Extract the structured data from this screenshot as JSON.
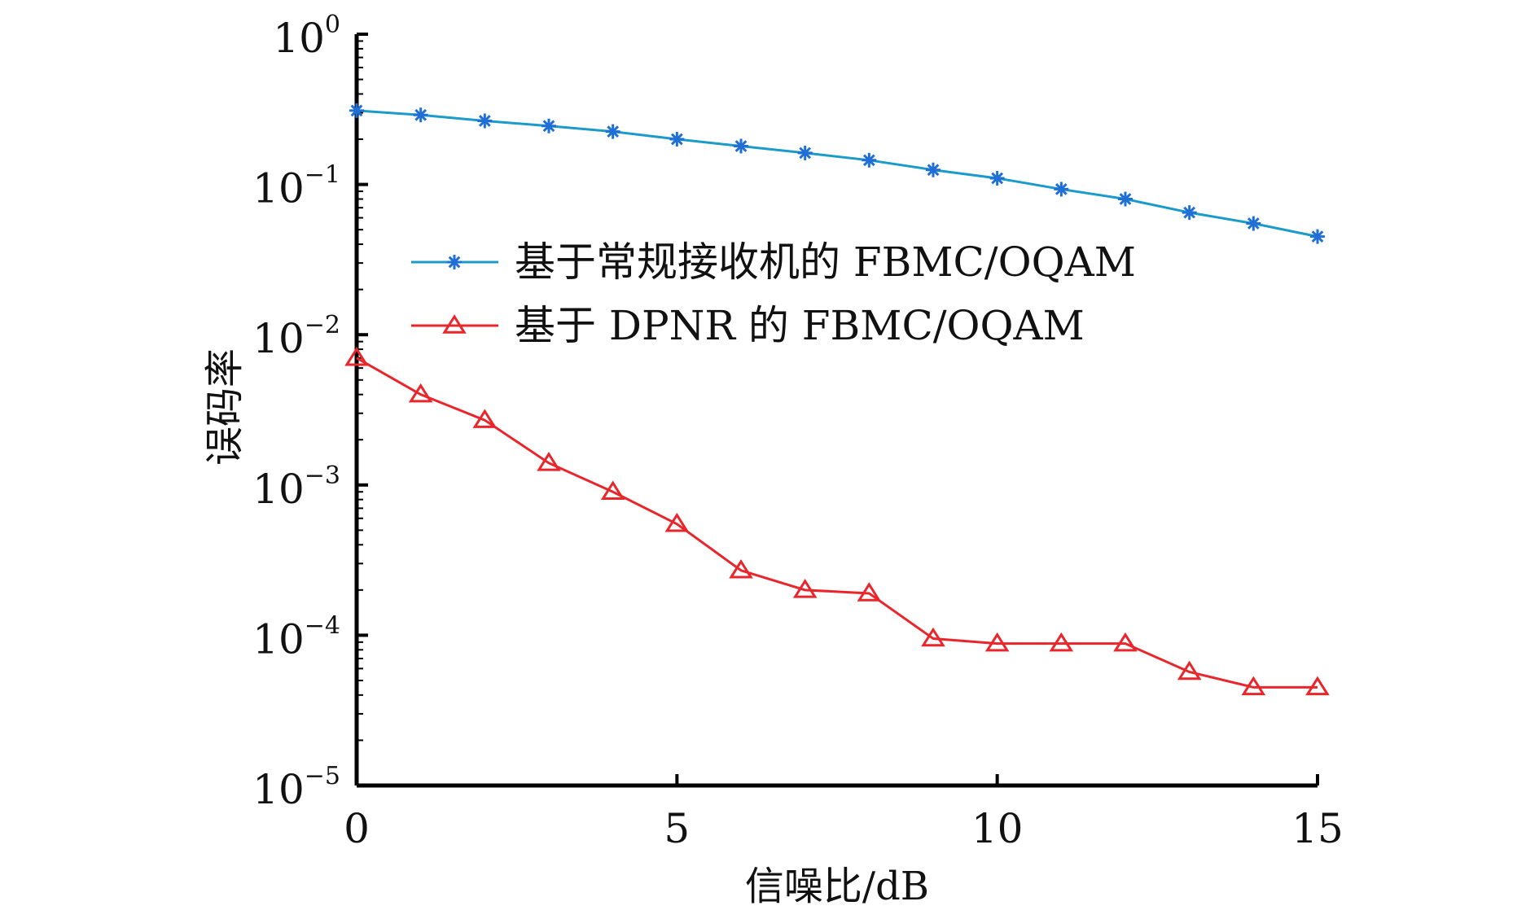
{
  "chart_data": {
    "type": "line",
    "title": "",
    "xlabel": "信噪比/dB",
    "ylabel": "误码率",
    "y_scale": "log",
    "xlim": [
      0,
      15
    ],
    "ylim": [
      1e-05,
      1
    ],
    "x_ticks": [
      0,
      5,
      10,
      15
    ],
    "x_tick_labels": [
      "0",
      "5",
      "10",
      "15"
    ],
    "y_ticks": [
      {
        "base": "10",
        "exp": "0",
        "value": 1
      },
      {
        "base": "10",
        "exp": "−1",
        "value": 0.1
      },
      {
        "base": "10",
        "exp": "−2",
        "value": 0.01
      },
      {
        "base": "10",
        "exp": "−3",
        "value": 0.001
      },
      {
        "base": "10",
        "exp": "−4",
        "value": 0.0001
      },
      {
        "base": "10",
        "exp": "−5",
        "value": 1e-05
      }
    ],
    "legend_position": "upper-center",
    "grid": false,
    "x": [
      0,
      1,
      2,
      3,
      4,
      5,
      6,
      7,
      8,
      9,
      10,
      11,
      12,
      13,
      14,
      15
    ],
    "series": [
      {
        "name": "基于常规接收机的 FBMC/OQAM",
        "color": "#1a9bc9",
        "marker": "asterisk",
        "marker_color": "#1f6fd6",
        "values": [
          0.31,
          0.29,
          0.265,
          0.245,
          0.225,
          0.2,
          0.18,
          0.162,
          0.145,
          0.125,
          0.11,
          0.093,
          0.08,
          0.065,
          0.055,
          0.045
        ]
      },
      {
        "name": "基于 DPNR 的 FBMC/OQAM",
        "color": "#e8262b",
        "marker": "triangle",
        "values": [
          0.007,
          0.004,
          0.0027,
          0.0014,
          0.0009,
          0.00055,
          0.00027,
          0.0002,
          0.00019,
          9.5e-05,
          8.8e-05,
          8.8e-05,
          8.8e-05,
          5.7e-05,
          4.5e-05,
          4.5e-05
        ]
      }
    ]
  }
}
